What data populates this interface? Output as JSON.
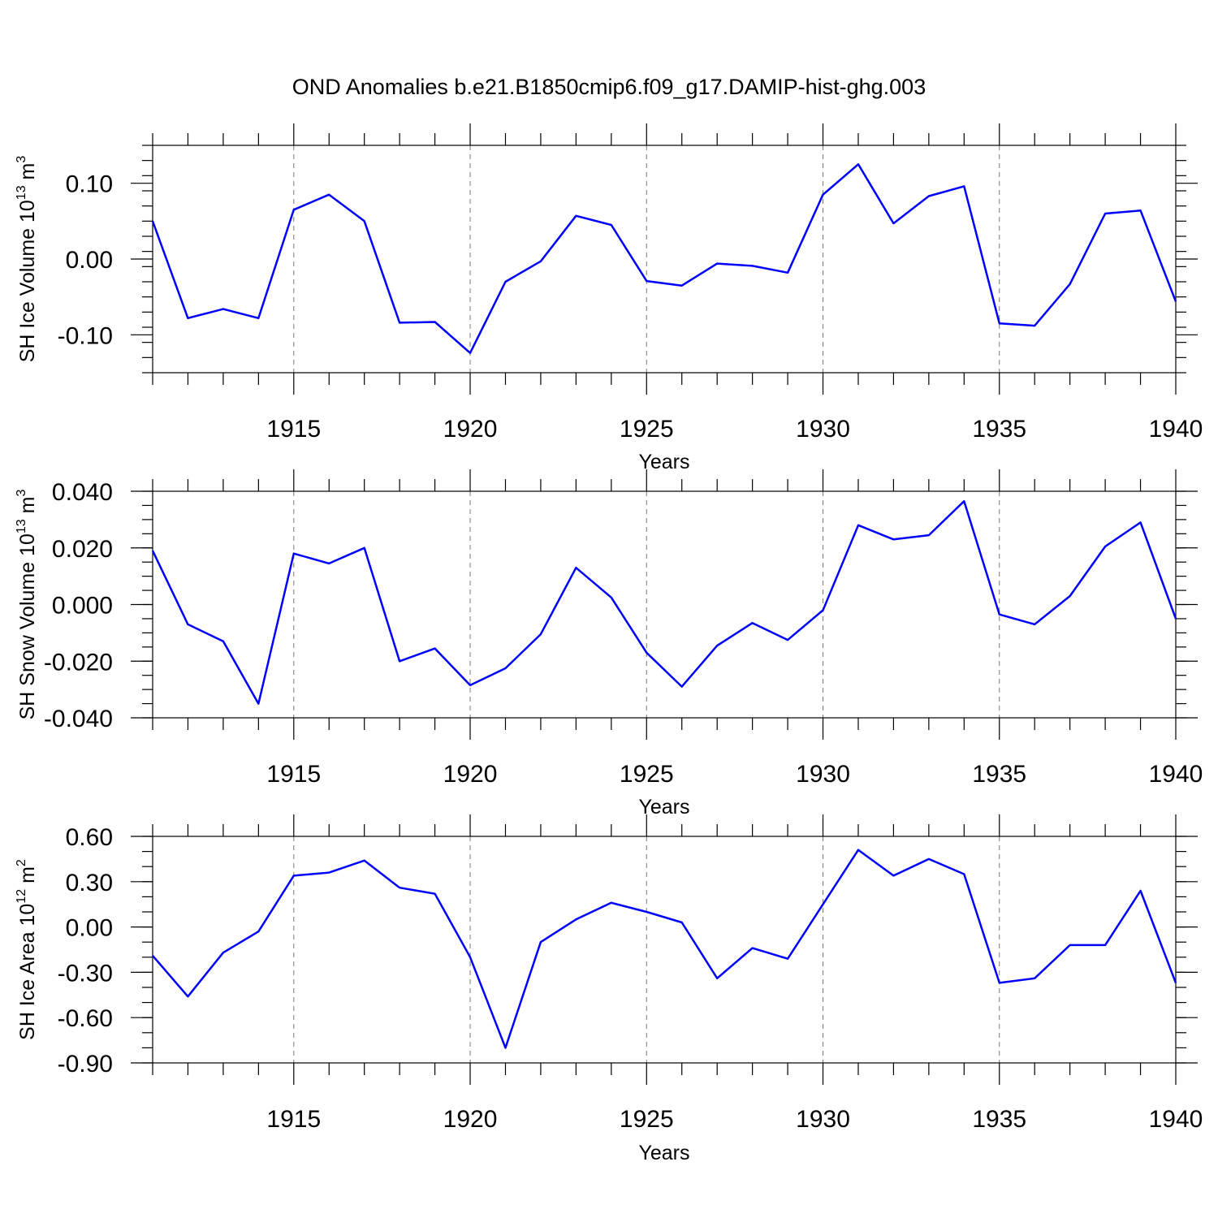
{
  "title": "OND Anomalies b.e21.B1850cmip6.f09_g17.DAMIP-hist-ghg.003",
  "colors": {
    "series": "#0000ff",
    "grid": "#777777",
    "frame": "#000000"
  },
  "chart_data": [
    {
      "type": "line",
      "xlabel": "Years",
      "ylabel_main": "SH Ice Volume 10",
      "ylabel_exp": "13",
      "ylabel_unit": " m",
      "ylabel_unit_exp": "3",
      "xlim": [
        1911,
        1940
      ],
      "ylim": [
        -0.15,
        0.15
      ],
      "yticks": [
        -0.1,
        0.0,
        0.1
      ],
      "ytick_labels": [
        "-0.10",
        "0.00",
        "0.10"
      ],
      "y_minor_step": 0.02,
      "xticks": [
        1915,
        1920,
        1925,
        1930,
        1935,
        1940
      ],
      "xtick_labels": [
        "1915",
        "1920",
        "1925",
        "1930",
        "1935",
        "1940"
      ],
      "grid": "vertical dashed at major x ticks",
      "x": [
        1911,
        1912,
        1913,
        1914,
        1915,
        1916,
        1917,
        1918,
        1919,
        1920,
        1921,
        1922,
        1923,
        1924,
        1925,
        1926,
        1927,
        1928,
        1929,
        1930,
        1931,
        1932,
        1933,
        1934,
        1935,
        1936,
        1937,
        1938,
        1939,
        1940
      ],
      "values": [
        0.05,
        -0.078,
        -0.066,
        -0.078,
        0.065,
        0.085,
        0.05,
        -0.084,
        -0.083,
        -0.124,
        -0.03,
        -0.003,
        0.057,
        0.045,
        -0.029,
        -0.035,
        -0.006,
        -0.009,
        -0.018,
        0.085,
        0.125,
        0.047,
        0.083,
        0.096,
        -0.085,
        -0.088,
        -0.033,
        0.06,
        0.064,
        -0.056
      ]
    },
    {
      "type": "line",
      "xlabel": "Years",
      "ylabel_main": "SH Snow Volume 10",
      "ylabel_exp": "13",
      "ylabel_unit": " m",
      "ylabel_unit_exp": "3",
      "xlim": [
        1911,
        1940
      ],
      "ylim": [
        -0.04,
        0.04
      ],
      "yticks": [
        -0.04,
        -0.02,
        0.0,
        0.02,
        0.04
      ],
      "ytick_labels": [
        "-0.040",
        "-0.020",
        "0.000",
        "0.020",
        "0.040"
      ],
      "y_minor_step": 0.005,
      "xticks": [
        1915,
        1920,
        1925,
        1930,
        1935,
        1940
      ],
      "xtick_labels": [
        "1915",
        "1920",
        "1925",
        "1930",
        "1935",
        "1940"
      ],
      "grid": "vertical dashed at major x ticks",
      "x": [
        1911,
        1912,
        1913,
        1914,
        1915,
        1916,
        1917,
        1918,
        1919,
        1920,
        1921,
        1922,
        1923,
        1924,
        1925,
        1926,
        1927,
        1928,
        1929,
        1930,
        1931,
        1932,
        1933,
        1934,
        1935,
        1936,
        1937,
        1938,
        1939,
        1940
      ],
      "values": [
        0.019,
        -0.007,
        -0.013,
        -0.035,
        0.018,
        0.0145,
        0.02,
        -0.02,
        -0.0155,
        -0.0285,
        -0.0225,
        -0.0105,
        0.013,
        0.0025,
        -0.017,
        -0.029,
        -0.0145,
        -0.0065,
        -0.0125,
        -0.002,
        0.028,
        0.023,
        0.0245,
        0.0365,
        -0.0035,
        -0.007,
        0.003,
        0.0205,
        0.029,
        -0.005
      ]
    },
    {
      "type": "line",
      "xlabel": "Years",
      "ylabel_main": "SH Ice Area 10",
      "ylabel_exp": "12",
      "ylabel_unit": " m",
      "ylabel_unit_exp": "2",
      "xlim": [
        1911,
        1940
      ],
      "ylim": [
        -0.9,
        0.6
      ],
      "yticks": [
        -0.9,
        -0.6,
        -0.3,
        0.0,
        0.3,
        0.6
      ],
      "ytick_labels": [
        "-0.90",
        "-0.60",
        "-0.30",
        "0.00",
        "0.30",
        "0.60"
      ],
      "y_minor_step": 0.1,
      "xticks": [
        1915,
        1920,
        1925,
        1930,
        1935,
        1940
      ],
      "xtick_labels": [
        "1915",
        "1920",
        "1925",
        "1930",
        "1935",
        "1940"
      ],
      "grid": "vertical dashed at major x ticks",
      "x": [
        1911,
        1912,
        1913,
        1914,
        1915,
        1916,
        1917,
        1918,
        1919,
        1920,
        1921,
        1922,
        1923,
        1924,
        1925,
        1926,
        1927,
        1928,
        1929,
        1930,
        1931,
        1932,
        1933,
        1934,
        1935,
        1936,
        1937,
        1938,
        1939,
        1940
      ],
      "values": [
        -0.19,
        -0.46,
        -0.17,
        -0.03,
        0.34,
        0.36,
        0.44,
        0.26,
        0.22,
        -0.2,
        -0.8,
        -0.1,
        0.05,
        0.16,
        0.1,
        0.03,
        -0.34,
        -0.14,
        -0.21,
        0.15,
        0.51,
        0.34,
        0.45,
        0.35,
        -0.37,
        -0.34,
        -0.12,
        -0.12,
        0.24,
        -0.37
      ]
    }
  ]
}
